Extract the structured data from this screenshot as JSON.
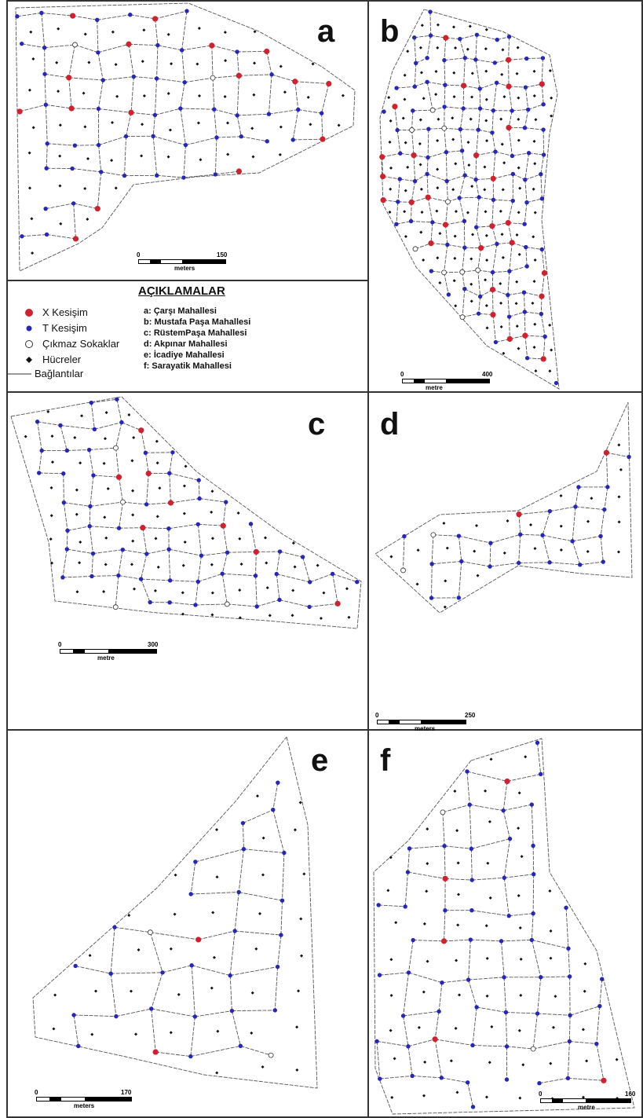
{
  "colors": {
    "x_intersection": "#d0212f",
    "t_intersection": "#2626b8",
    "dead_end_fill": "#ffffff",
    "cell": "#111111",
    "link": "#555555"
  },
  "panels": [
    {
      "id": "a",
      "letter": "a",
      "scale_max": "150",
      "scale_unit": "meters"
    },
    {
      "id": "b",
      "letter": "b",
      "scale_max": "400",
      "scale_unit": "metre"
    },
    {
      "id": "c",
      "letter": "c",
      "scale_max": "300",
      "scale_unit": "metre"
    },
    {
      "id": "d",
      "letter": "d",
      "scale_max": "250",
      "scale_unit": "meters"
    },
    {
      "id": "e",
      "letter": "e",
      "scale_max": "170",
      "scale_unit": "meters"
    },
    {
      "id": "f",
      "letter": "f",
      "scale_max": "160",
      "scale_unit": "metre"
    }
  ],
  "scale_zero": "0",
  "legend": {
    "title": "AÇIKLAMALAR",
    "symbols": [
      {
        "label": "X Kesişim",
        "icon": "red-circle-icon"
      },
      {
        "label": "T Kesişim",
        "icon": "blue-dot-icon"
      },
      {
        "label": "Çıkmaz Sokaklar",
        "icon": "hollow-circle-icon"
      },
      {
        "label": "Hücreler",
        "icon": "diamond-icon"
      },
      {
        "label": "Bağlantılar",
        "icon": "line-icon"
      }
    ],
    "neighbourhoods": [
      "a: Çarşı Mahallesi",
      "b: Mustafa Paşa Mahallesi",
      "c: RüstemPaşa Mahallesi",
      "d: Akpınar Mahallesi",
      "e: İcadiye Mahallesi",
      "f: Sarayatik Mahallesi"
    ]
  }
}
